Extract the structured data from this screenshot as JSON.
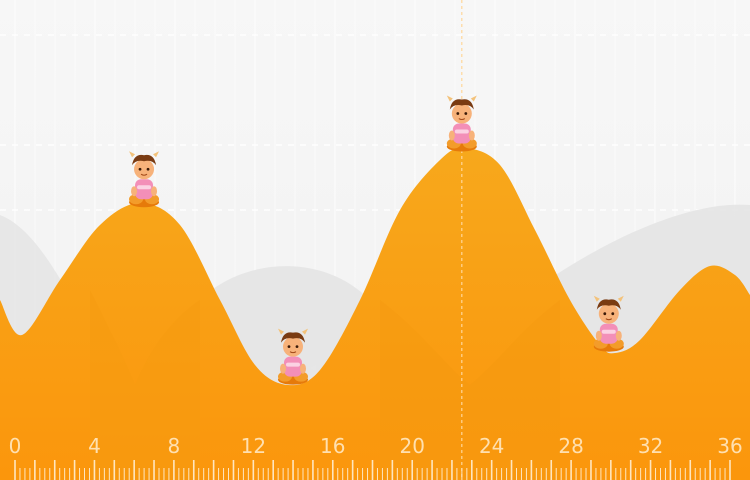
{
  "chart_data": {
    "type": "area",
    "x_ticks": [
      "0",
      "4",
      "8",
      "12",
      "16",
      "20",
      "24",
      "28",
      "32",
      "36"
    ],
    "xlim": [
      0,
      37
    ],
    "peaks": [
      {
        "x": 7,
        "level": "high"
      },
      {
        "x": 14.5,
        "level": "low"
      },
      {
        "x": 23,
        "level": "highest"
      },
      {
        "x": 30.5,
        "level": "low"
      },
      {
        "x": 35.5,
        "level": "mid"
      }
    ],
    "marker_x": 23,
    "characters_at_x": [
      6.9,
      14.4,
      22.9,
      30.3
    ],
    "colors": {
      "hill_top": "#f7a81c",
      "hill_bottom": "#fa9a0f",
      "background": "#f6f6f6",
      "ghost_hill": "#e6e6e6",
      "tick_label": "#ffe0b0",
      "marker_line": "#ffd79a"
    },
    "icons": [
      "cartoon-character-icon"
    ]
  }
}
